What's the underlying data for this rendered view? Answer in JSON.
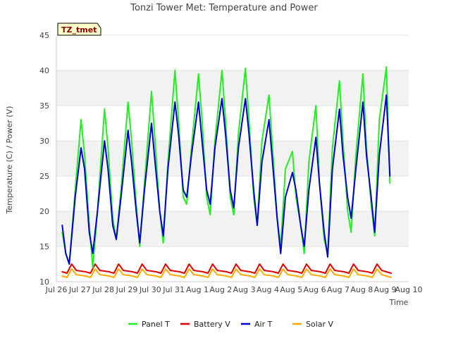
{
  "chart_data": {
    "type": "line",
    "title": "Tonzi Tower Met: Temperature and Power",
    "xlabel": "Time",
    "ylabel": "Temperature (C) / Power (V)",
    "badge": "TZ_tmet",
    "xlim": [
      0,
      15
    ],
    "ylim": [
      10,
      45
    ],
    "x_ticks": [
      {
        "v": 0,
        "label": "Jul 26"
      },
      {
        "v": 1,
        "label": "Jul 27"
      },
      {
        "v": 2,
        "label": "Jul 28"
      },
      {
        "v": 3,
        "label": "Jul 29"
      },
      {
        "v": 4,
        "label": "Jul 30"
      },
      {
        "v": 5,
        "label": "Jul 31"
      },
      {
        "v": 6,
        "label": "Aug 1"
      },
      {
        "v": 7,
        "label": "Aug 2"
      },
      {
        "v": 8,
        "label": "Aug 3"
      },
      {
        "v": 9,
        "label": "Aug 4"
      },
      {
        "v": 10,
        "label": "Aug 5"
      },
      {
        "v": 11,
        "label": "Aug 6"
      },
      {
        "v": 12,
        "label": "Aug 7"
      },
      {
        "v": 13,
        "label": "Aug 8"
      },
      {
        "v": 14,
        "label": "Aug 9"
      },
      {
        "v": 15,
        "label": "Aug 10"
      }
    ],
    "y_ticks": [
      10,
      15,
      20,
      25,
      30,
      35,
      40,
      45
    ],
    "series": [
      {
        "name": "Panel T",
        "color": "#22ee22",
        "x": [
          0.25,
          0.4,
          0.55,
          0.8,
          1.05,
          1.2,
          1.4,
          1.55,
          1.75,
          2.05,
          2.2,
          2.4,
          2.55,
          2.75,
          3.05,
          3.2,
          3.4,
          3.55,
          3.75,
          4.05,
          4.2,
          4.4,
          4.55,
          4.75,
          5.05,
          5.2,
          5.4,
          5.55,
          5.75,
          6.05,
          6.2,
          6.4,
          6.55,
          6.75,
          7.05,
          7.2,
          7.4,
          7.55,
          7.75,
          8.05,
          8.2,
          8.4,
          8.55,
          8.75,
          9.05,
          9.2,
          9.4,
          9.55,
          9.75,
          10.05,
          10.2,
          10.4,
          10.55,
          10.75,
          11.05,
          11.2,
          11.4,
          11.55,
          11.75,
          12.05,
          12.2,
          12.4,
          12.55,
          12.75,
          13.05,
          13.2,
          13.4,
          13.55,
          13.75,
          14.05,
          14.2
        ],
        "y": [
          17,
          14,
          12.5,
          23,
          33,
          28,
          18,
          12,
          20,
          34.5,
          29,
          19,
          16,
          23,
          35.5,
          30,
          21,
          15,
          24,
          37,
          30,
          20,
          15.5,
          27,
          40,
          33,
          22,
          21,
          29,
          39.5,
          33,
          22,
          19.5,
          30,
          40,
          33,
          22,
          19.5,
          31,
          40.3,
          33,
          22,
          18,
          30,
          36.5,
          29,
          19,
          15,
          26,
          28.5,
          22,
          18,
          14,
          27,
          35,
          24,
          16,
          14,
          29,
          38.5,
          30,
          20,
          17,
          28,
          39.5,
          29,
          21,
          16.5,
          33,
          40.5,
          24
        ]
      },
      {
        "name": "Air T",
        "color": "#0000cc",
        "x": [
          0.25,
          0.4,
          0.55,
          0.8,
          1.05,
          1.2,
          1.4,
          1.55,
          1.75,
          2.05,
          2.2,
          2.4,
          2.55,
          2.75,
          3.05,
          3.2,
          3.4,
          3.55,
          3.75,
          4.05,
          4.2,
          4.4,
          4.55,
          4.75,
          5.05,
          5.2,
          5.4,
          5.55,
          5.75,
          6.05,
          6.2,
          6.4,
          6.55,
          6.75,
          7.05,
          7.2,
          7.4,
          7.55,
          7.75,
          8.05,
          8.2,
          8.4,
          8.55,
          8.75,
          9.05,
          9.2,
          9.4,
          9.55,
          9.75,
          10.05,
          10.2,
          10.4,
          10.55,
          10.75,
          11.05,
          11.2,
          11.4,
          11.55,
          11.75,
          12.05,
          12.2,
          12.4,
          12.55,
          12.75,
          13.05,
          13.2,
          13.4,
          13.55,
          13.75,
          14.05,
          14.2
        ],
        "y": [
          18,
          14,
          12.5,
          22,
          29,
          26,
          17,
          14,
          20,
          30,
          26,
          18,
          16,
          22,
          31.5,
          27,
          20,
          15.5,
          23,
          32.5,
          27,
          20,
          16.5,
          26,
          35.5,
          31,
          23,
          22,
          28,
          35.5,
          30,
          23,
          21,
          29,
          36,
          31,
          23,
          20.5,
          29,
          36,
          31,
          23,
          18,
          27,
          33,
          27,
          19,
          14,
          22,
          25.5,
          23,
          18,
          15,
          23,
          30.5,
          24,
          17,
          13.5,
          26,
          34.5,
          28,
          22,
          19,
          26,
          35.5,
          28,
          22,
          17,
          28,
          36.5,
          25
        ]
      },
      {
        "name": "Battery V",
        "color": "#dd0000",
        "x": [
          0.25,
          0.45,
          0.65,
          0.85,
          1.25,
          1.45,
          1.65,
          1.85,
          2.25,
          2.45,
          2.65,
          2.85,
          3.25,
          3.45,
          3.65,
          3.85,
          4.25,
          4.45,
          4.65,
          4.85,
          5.25,
          5.45,
          5.65,
          5.85,
          6.25,
          6.45,
          6.65,
          6.85,
          7.25,
          7.45,
          7.65,
          7.85,
          8.25,
          8.45,
          8.65,
          8.85,
          9.25,
          9.45,
          9.65,
          9.85,
          10.25,
          10.45,
          10.65,
          10.85,
          11.25,
          11.45,
          11.65,
          11.85,
          12.25,
          12.45,
          12.65,
          12.85,
          13.25,
          13.45,
          13.65,
          13.85,
          14.25
        ],
        "y": [
          11.4,
          11.2,
          12.5,
          11.6,
          11.4,
          11.2,
          12.5,
          11.6,
          11.4,
          11.2,
          12.5,
          11.6,
          11.4,
          11.2,
          12.5,
          11.6,
          11.4,
          11.2,
          12.5,
          11.6,
          11.4,
          11.2,
          12.5,
          11.6,
          11.4,
          11.2,
          12.5,
          11.6,
          11.4,
          11.2,
          12.5,
          11.6,
          11.4,
          11.2,
          12.5,
          11.6,
          11.4,
          11.2,
          12.5,
          11.6,
          11.4,
          11.2,
          12.5,
          11.6,
          11.4,
          11.2,
          12.5,
          11.6,
          11.4,
          11.2,
          12.5,
          11.6,
          11.4,
          11.2,
          12.5,
          11.6,
          11.2
        ]
      },
      {
        "name": "Solar V",
        "color": "#ffaa00",
        "x": [
          0.25,
          0.45,
          0.65,
          0.85,
          1.25,
          1.45,
          1.65,
          1.85,
          2.25,
          2.45,
          2.65,
          2.85,
          3.25,
          3.45,
          3.65,
          3.85,
          4.25,
          4.45,
          4.65,
          4.85,
          5.25,
          5.45,
          5.65,
          5.85,
          6.25,
          6.45,
          6.65,
          6.85,
          7.25,
          7.45,
          7.65,
          7.85,
          8.25,
          8.45,
          8.65,
          8.85,
          9.25,
          9.45,
          9.65,
          9.85,
          10.25,
          10.45,
          10.65,
          10.85,
          11.25,
          11.45,
          11.65,
          11.85,
          12.25,
          12.45,
          12.65,
          12.85,
          13.25,
          13.45,
          13.65,
          13.85,
          14.25
        ],
        "y": [
          10.8,
          10.6,
          11.8,
          11.0,
          10.8,
          10.6,
          11.8,
          11.0,
          10.8,
          10.6,
          11.8,
          11.0,
          10.8,
          10.6,
          11.8,
          11.0,
          10.8,
          10.6,
          11.8,
          11.0,
          10.8,
          10.6,
          11.8,
          11.0,
          10.8,
          10.6,
          11.8,
          11.0,
          10.8,
          10.6,
          11.8,
          11.0,
          10.8,
          10.6,
          11.8,
          11.0,
          10.8,
          10.6,
          11.8,
          11.0,
          10.8,
          10.6,
          11.8,
          11.0,
          10.8,
          10.6,
          11.8,
          11.0,
          10.8,
          10.6,
          11.8,
          11.0,
          10.8,
          10.6,
          11.8,
          11.0,
          10.6
        ]
      }
    ],
    "legend": {
      "placement": "bottom",
      "entries": [
        "Panel T",
        "Battery V",
        "Air T",
        "Solar V"
      ]
    }
  }
}
